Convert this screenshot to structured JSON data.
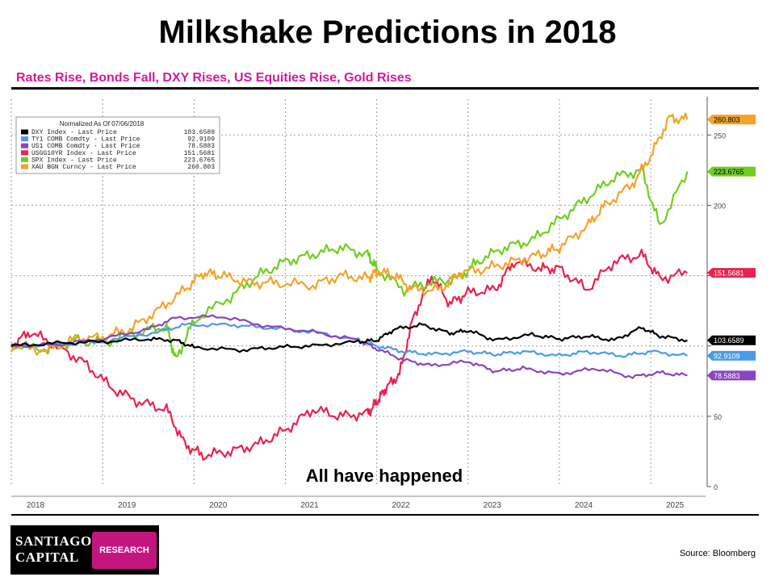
{
  "title": "Milkshake Predictions in 2018",
  "subtitle": "Rates Rise, Bonds Fall, DXY Rises, US Equities Rise, Gold Rises",
  "source": "Source:  Bloomberg",
  "logo": {
    "line1": "SANTIAGO",
    "line2": "CAPITAL",
    "badge": "RESEARCH"
  },
  "chart_data": {
    "type": "line",
    "annotation": "All have happened",
    "legend": {
      "title": "Normalized As Of 07/06/2018",
      "placement": "top-left"
    },
    "ylim": [
      0,
      280
    ],
    "xlim": [
      2018.0,
      2025.6
    ],
    "yticks": [
      0,
      50,
      100,
      150,
      200,
      250
    ],
    "ytick_labels": [
      "0",
      "50",
      "",
      "",
      "200",
      "250"
    ],
    "xticks": [
      2018,
      2019,
      2020,
      2021,
      2022,
      2023,
      2024,
      2025
    ],
    "grid": true,
    "series": [
      {
        "name": "DXY Index - Last Price",
        "last_value": "103.6589",
        "color": "#000000",
        "points": [
          [
            2018.0,
            100
          ],
          [
            2018.5,
            102
          ],
          [
            2019.0,
            103
          ],
          [
            2019.5,
            105
          ],
          [
            2019.8,
            104
          ],
          [
            2020.0,
            99
          ],
          [
            2020.5,
            97
          ],
          [
            2020.9,
            99
          ],
          [
            2021.3,
            100
          ],
          [
            2021.8,
            103
          ],
          [
            2022.0,
            104
          ],
          [
            2022.2,
            112
          ],
          [
            2022.5,
            115
          ],
          [
            2022.8,
            109
          ],
          [
            2023.0,
            111
          ],
          [
            2023.3,
            104
          ],
          [
            2023.7,
            108
          ],
          [
            2024.0,
            105
          ],
          [
            2024.3,
            107
          ],
          [
            2024.6,
            104
          ],
          [
            2024.9,
            113
          ],
          [
            2025.1,
            107
          ],
          [
            2025.4,
            104
          ]
        ]
      },
      {
        "name": "TY1 COMB Comdty - Last Price",
        "last_value": "92.9109",
        "color": "#4a9be8",
        "points": [
          [
            2018.0,
            100
          ],
          [
            2018.5,
            101
          ],
          [
            2019.0,
            103
          ],
          [
            2019.6,
            110
          ],
          [
            2019.9,
            115
          ],
          [
            2020.4,
            115
          ],
          [
            2020.8,
            113
          ],
          [
            2021.3,
            110
          ],
          [
            2021.8,
            104
          ],
          [
            2022.0,
            100
          ],
          [
            2022.3,
            96
          ],
          [
            2022.6,
            94
          ],
          [
            2023.0,
            96
          ],
          [
            2023.3,
            94
          ],
          [
            2023.6,
            96
          ],
          [
            2024.0,
            93
          ],
          [
            2024.3,
            96
          ],
          [
            2024.7,
            93
          ],
          [
            2025.0,
            96
          ],
          [
            2025.4,
            93
          ]
        ]
      },
      {
        "name": "US1 COMB Comdty - Last Price",
        "last_value": "78.5883",
        "color": "#8a44c0",
        "points": [
          [
            2018.0,
            100
          ],
          [
            2018.5,
            101
          ],
          [
            2019.0,
            105
          ],
          [
            2019.5,
            112
          ],
          [
            2019.8,
            120
          ],
          [
            2020.3,
            121
          ],
          [
            2020.8,
            114
          ],
          [
            2021.3,
            110
          ],
          [
            2021.8,
            104
          ],
          [
            2022.0,
            98
          ],
          [
            2022.3,
            90
          ],
          [
            2022.6,
            86
          ],
          [
            2023.0,
            89
          ],
          [
            2023.3,
            82
          ],
          [
            2023.6,
            84
          ],
          [
            2024.0,
            80
          ],
          [
            2024.4,
            84
          ],
          [
            2024.8,
            78
          ],
          [
            2025.1,
            81
          ],
          [
            2025.4,
            79
          ]
        ]
      },
      {
        "name": "USGG10YR Index - Last Price",
        "last_value": "151.5681",
        "color": "#e8234f",
        "points": [
          [
            2018.0,
            100
          ],
          [
            2018.2,
            110
          ],
          [
            2018.5,
            100
          ],
          [
            2018.8,
            88
          ],
          [
            2019.1,
            70
          ],
          [
            2019.4,
            60
          ],
          [
            2019.7,
            55
          ],
          [
            2019.9,
            30
          ],
          [
            2020.1,
            22
          ],
          [
            2020.4,
            25
          ],
          [
            2020.7,
            30
          ],
          [
            2021.0,
            40
          ],
          [
            2021.3,
            55
          ],
          [
            2021.6,
            50
          ],
          [
            2021.9,
            52
          ],
          [
            2022.0,
            60
          ],
          [
            2022.1,
            70
          ],
          [
            2022.25,
            80
          ],
          [
            2022.4,
            120
          ],
          [
            2022.6,
            150
          ],
          [
            2022.8,
            130
          ],
          [
            2023.0,
            138
          ],
          [
            2023.3,
            140
          ],
          [
            2023.5,
            160
          ],
          [
            2023.8,
            155
          ],
          [
            2024.0,
            155
          ],
          [
            2024.3,
            140
          ],
          [
            2024.6,
            160
          ],
          [
            2024.9,
            165
          ],
          [
            2025.1,
            148
          ],
          [
            2025.4,
            152
          ]
        ]
      },
      {
        "name": "SPX Index - Last Price",
        "last_value": "223.6765",
        "color": "#6fcf1f",
        "points": [
          [
            2018.0,
            100
          ],
          [
            2018.4,
            98
          ],
          [
            2018.7,
            104
          ],
          [
            2019.0,
            102
          ],
          [
            2019.4,
            110
          ],
          [
            2019.7,
            114
          ],
          [
            2019.8,
            90
          ],
          [
            2020.0,
            118
          ],
          [
            2020.4,
            135
          ],
          [
            2020.7,
            150
          ],
          [
            2021.0,
            160
          ],
          [
            2021.3,
            165
          ],
          [
            2021.6,
            170
          ],
          [
            2021.9,
            165
          ],
          [
            2022.0,
            155
          ],
          [
            2022.3,
            140
          ],
          [
            2022.6,
            145
          ],
          [
            2022.9,
            148
          ],
          [
            2023.1,
            160
          ],
          [
            2023.4,
            170
          ],
          [
            2023.7,
            175
          ],
          [
            2024.0,
            190
          ],
          [
            2024.3,
            205
          ],
          [
            2024.6,
            220
          ],
          [
            2024.9,
            225
          ],
          [
            2025.1,
            185
          ],
          [
            2025.4,
            224
          ]
        ]
      },
      {
        "name": "XAU BGN Curncy - Last Price",
        "last_value": "260.803",
        "color": "#f5a22a",
        "points": [
          [
            2018.0,
            100
          ],
          [
            2018.4,
            97
          ],
          [
            2018.7,
            105
          ],
          [
            2019.0,
            106
          ],
          [
            2019.3,
            112
          ],
          [
            2019.6,
            125
          ],
          [
            2019.9,
            140
          ],
          [
            2020.1,
            152
          ],
          [
            2020.3,
            150
          ],
          [
            2020.6,
            145
          ],
          [
            2020.9,
            145
          ],
          [
            2021.3,
            143
          ],
          [
            2021.6,
            150
          ],
          [
            2021.9,
            148
          ],
          [
            2022.0,
            153
          ],
          [
            2022.2,
            150
          ],
          [
            2022.4,
            140
          ],
          [
            2022.7,
            140
          ],
          [
            2022.9,
            152
          ],
          [
            2023.2,
            155
          ],
          [
            2023.5,
            160
          ],
          [
            2023.8,
            165
          ],
          [
            2024.0,
            170
          ],
          [
            2024.3,
            185
          ],
          [
            2024.5,
            200
          ],
          [
            2024.8,
            215
          ],
          [
            2025.0,
            235
          ],
          [
            2025.2,
            262
          ],
          [
            2025.4,
            261
          ]
        ]
      }
    ]
  }
}
